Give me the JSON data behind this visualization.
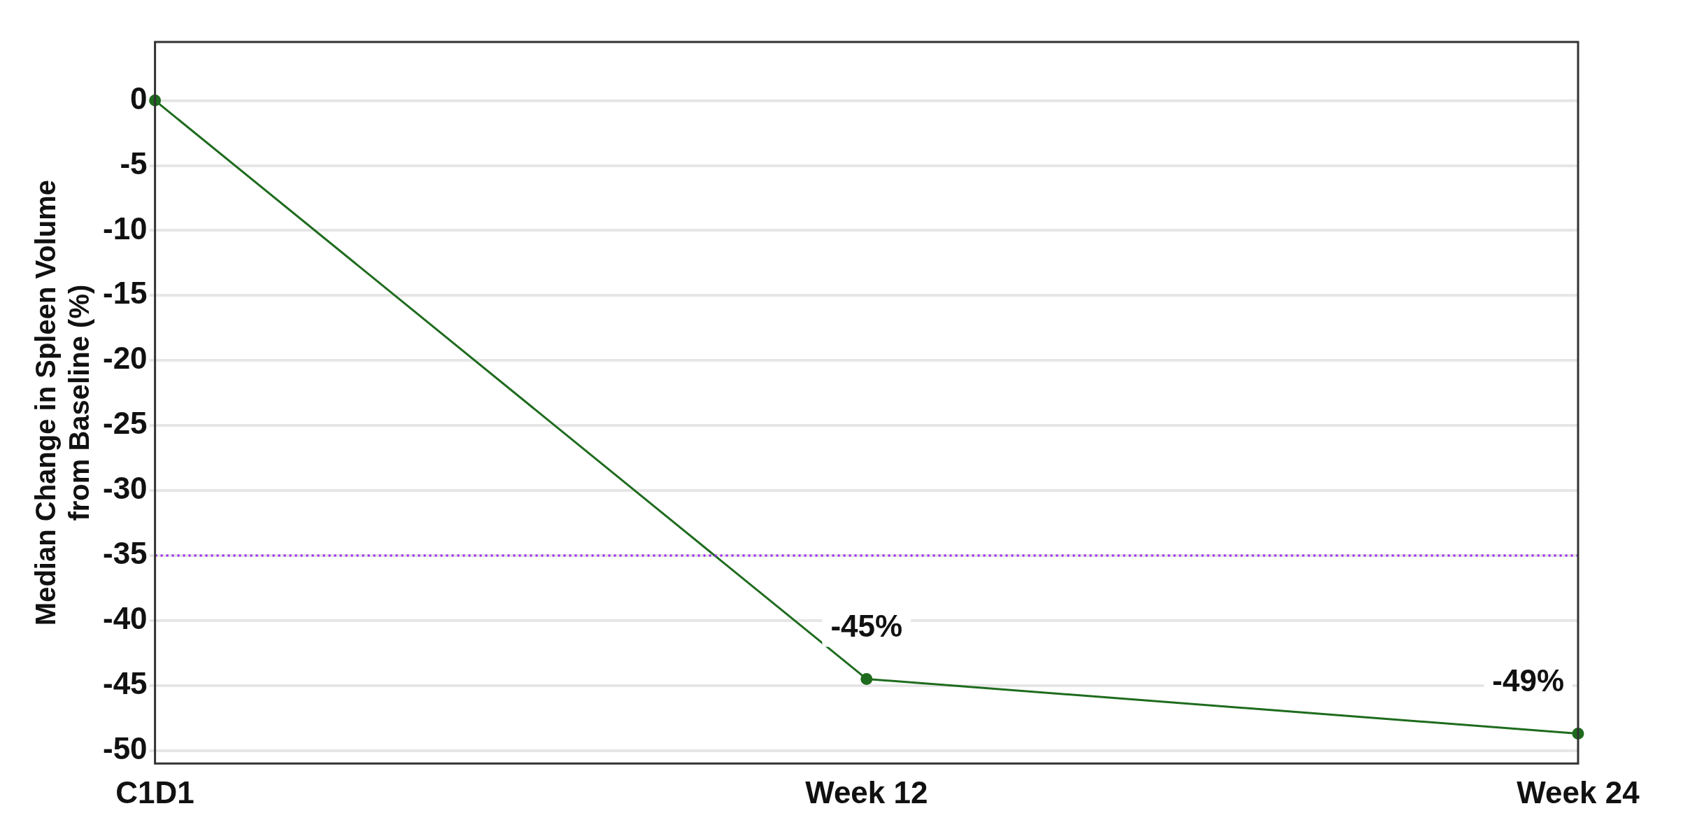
{
  "chart_data": {
    "type": "line",
    "ylabel": "Median Change in Spleen Volume\nfrom Baseline (%)",
    "categories": [
      "C1D1",
      "Week 12",
      "Week 24"
    ],
    "series": [
      {
        "color": "#1e6b1e",
        "values": [
          0,
          -44.5,
          -48.7
        ],
        "value_labels": [
          null,
          "-45%",
          "-49%"
        ]
      }
    ],
    "ylim": [
      -51,
      4.5
    ],
    "yticks": [
      0,
      -5,
      -10,
      -15,
      -20,
      -25,
      -30,
      -35,
      -40,
      -45,
      -50
    ],
    "grid": "y",
    "marker": "circle",
    "line_style": "solid",
    "ref_lines": [
      {
        "axis": "y",
        "value": -35,
        "color": "#a020f0",
        "line_style": "dotted"
      }
    ]
  }
}
